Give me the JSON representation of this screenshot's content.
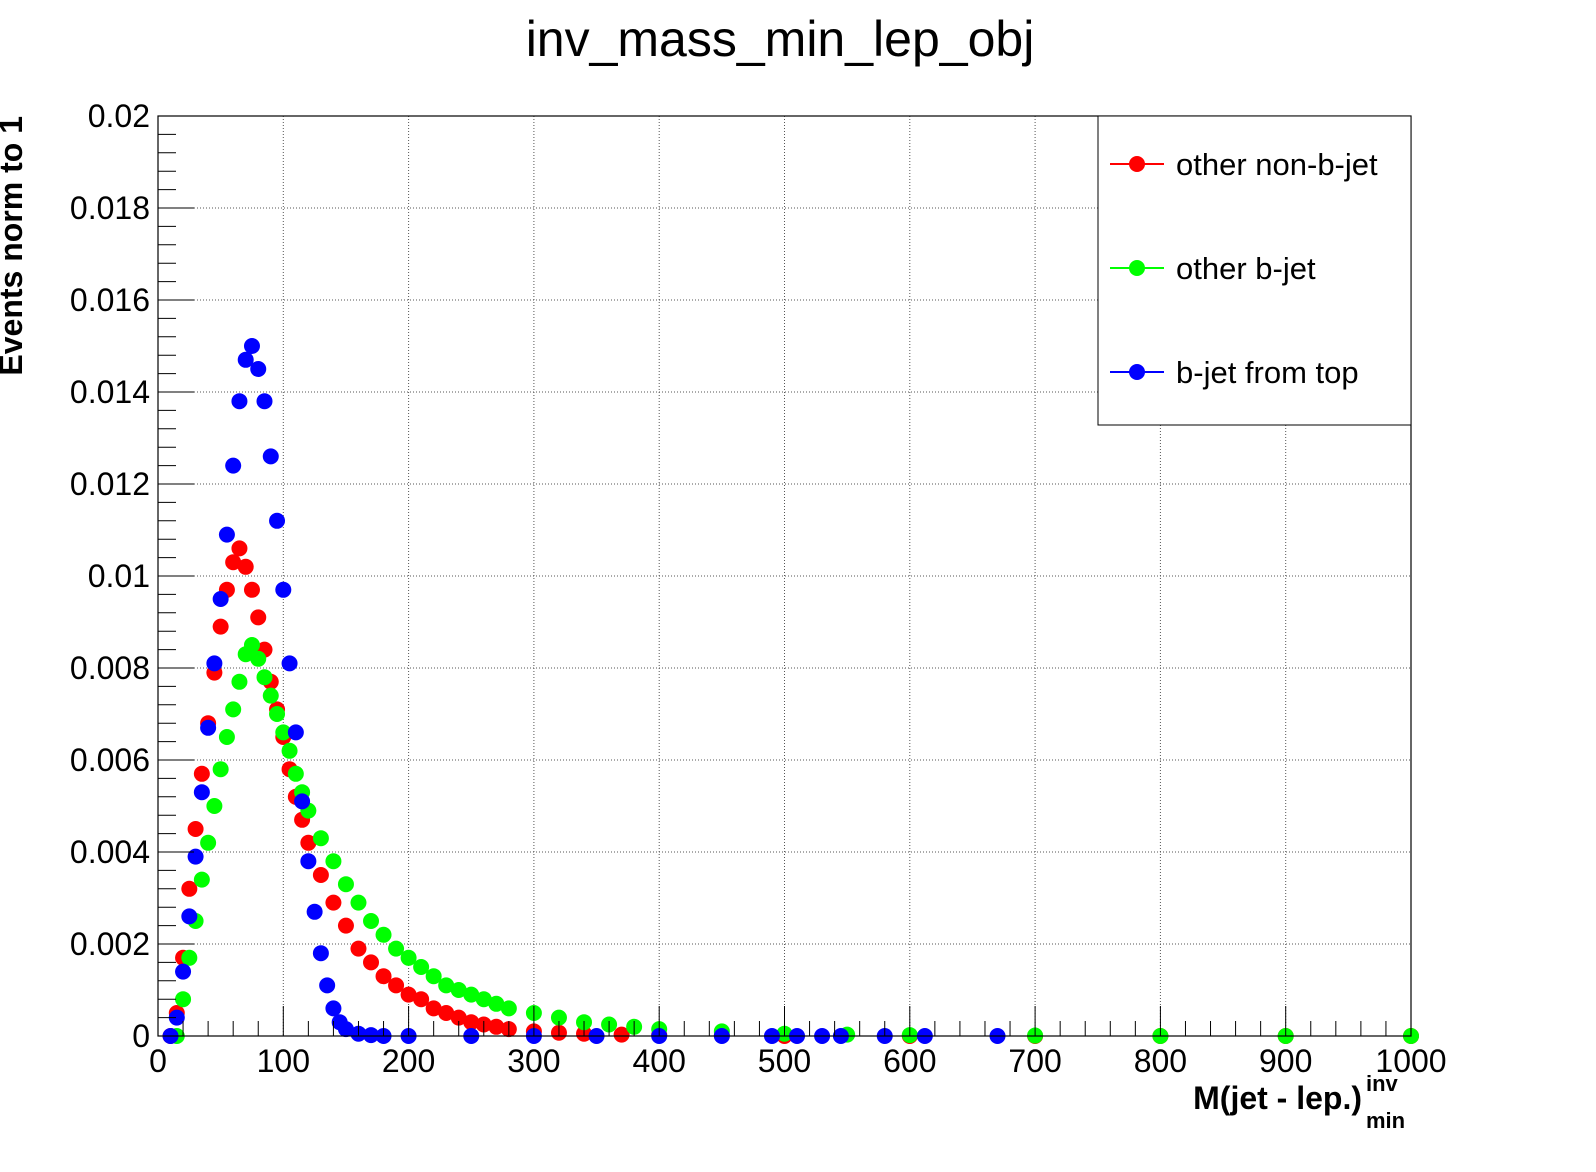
{
  "chart_data": {
    "type": "scatter",
    "title": "inv_mass_min_lep_obj",
    "xlabel": {
      "main": "M(jet - lep.)",
      "superscript": "inv",
      "subscript": "min"
    },
    "ylabel": "Events norm to 1",
    "xlim": [
      0,
      1000
    ],
    "ylim": [
      0,
      0.02
    ],
    "x_ticks": [
      "0",
      "100",
      "200",
      "300",
      "400",
      "500",
      "600",
      "700",
      "800",
      "900",
      "1000"
    ],
    "y_ticks": [
      "0",
      "0.002",
      "0.004",
      "0.006",
      "0.008",
      "0.01",
      "0.012",
      "0.014",
      "0.016",
      "0.018",
      "0.02"
    ],
    "grid": true,
    "legend_position": "top-right",
    "series": [
      {
        "name": "other non-b-jet",
        "color": "#ff0000",
        "points": [
          [
            10,
            0.0
          ],
          [
            15,
            0.0005
          ],
          [
            20,
            0.0017
          ],
          [
            25,
            0.0032
          ],
          [
            30,
            0.0045
          ],
          [
            35,
            0.0057
          ],
          [
            40,
            0.0068
          ],
          [
            45,
            0.0079
          ],
          [
            50,
            0.0089
          ],
          [
            55,
            0.0097
          ],
          [
            60,
            0.0103
          ],
          [
            65,
            0.0106
          ],
          [
            70,
            0.0102
          ],
          [
            75,
            0.0097
          ],
          [
            80,
            0.0091
          ],
          [
            85,
            0.0084
          ],
          [
            90,
            0.0077
          ],
          [
            95,
            0.0071
          ],
          [
            100,
            0.0065
          ],
          [
            105,
            0.0058
          ],
          [
            110,
            0.0052
          ],
          [
            115,
            0.0047
          ],
          [
            120,
            0.0042
          ],
          [
            130,
            0.0035
          ],
          [
            140,
            0.0029
          ],
          [
            150,
            0.0024
          ],
          [
            160,
            0.0019
          ],
          [
            170,
            0.0016
          ],
          [
            180,
            0.0013
          ],
          [
            190,
            0.0011
          ],
          [
            200,
            0.0009
          ],
          [
            210,
            0.0008
          ],
          [
            220,
            0.0006
          ],
          [
            230,
            0.0005
          ],
          [
            240,
            0.0004
          ],
          [
            250,
            0.0003
          ],
          [
            260,
            0.00025
          ],
          [
            270,
            0.0002
          ],
          [
            280,
            0.00015
          ],
          [
            300,
            0.0001
          ],
          [
            320,
            7e-05
          ],
          [
            340,
            5e-05
          ],
          [
            370,
            3e-05
          ],
          [
            400,
            2e-05
          ],
          [
            450,
            1e-05
          ],
          [
            500,
            0.0
          ],
          [
            600,
            0.0
          ],
          [
            700,
            0.0
          ],
          [
            800,
            0.0
          ],
          [
            900,
            0.0
          ],
          [
            1000,
            0.0
          ]
        ]
      },
      {
        "name": "other b-jet",
        "color": "#00ff00",
        "points": [
          [
            15,
            0.0
          ],
          [
            20,
            0.0008
          ],
          [
            25,
            0.0017
          ],
          [
            30,
            0.0025
          ],
          [
            35,
            0.0034
          ],
          [
            40,
            0.0042
          ],
          [
            45,
            0.005
          ],
          [
            50,
            0.0058
          ],
          [
            55,
            0.0065
          ],
          [
            60,
            0.0071
          ],
          [
            65,
            0.0077
          ],
          [
            70,
            0.0083
          ],
          [
            75,
            0.0085
          ],
          [
            80,
            0.0082
          ],
          [
            85,
            0.0078
          ],
          [
            90,
            0.0074
          ],
          [
            95,
            0.007
          ],
          [
            100,
            0.0066
          ],
          [
            105,
            0.0062
          ],
          [
            110,
            0.0057
          ],
          [
            115,
            0.0053
          ],
          [
            120,
            0.0049
          ],
          [
            130,
            0.0043
          ],
          [
            140,
            0.0038
          ],
          [
            150,
            0.0033
          ],
          [
            160,
            0.0029
          ],
          [
            170,
            0.0025
          ],
          [
            180,
            0.0022
          ],
          [
            190,
            0.0019
          ],
          [
            200,
            0.0017
          ],
          [
            210,
            0.0015
          ],
          [
            220,
            0.0013
          ],
          [
            230,
            0.0011
          ],
          [
            240,
            0.001
          ],
          [
            250,
            0.0009
          ],
          [
            260,
            0.0008
          ],
          [
            270,
            0.0007
          ],
          [
            280,
            0.0006
          ],
          [
            300,
            0.0005
          ],
          [
            320,
            0.0004
          ],
          [
            340,
            0.0003
          ],
          [
            360,
            0.00025
          ],
          [
            380,
            0.0002
          ],
          [
            400,
            0.00015
          ],
          [
            450,
            0.0001
          ],
          [
            500,
            5e-05
          ],
          [
            550,
            3e-05
          ],
          [
            600,
            2e-05
          ],
          [
            700,
            1e-05
          ],
          [
            800,
            0.0
          ],
          [
            900,
            0.0
          ],
          [
            1000,
            0.0
          ]
        ]
      },
      {
        "name": "b-jet from top",
        "color": "#0000ff",
        "points": [
          [
            10,
            0.0
          ],
          [
            15,
            0.0004
          ],
          [
            20,
            0.0014
          ],
          [
            25,
            0.0026
          ],
          [
            30,
            0.0039
          ],
          [
            35,
            0.0053
          ],
          [
            40,
            0.0067
          ],
          [
            45,
            0.0081
          ],
          [
            50,
            0.0095
          ],
          [
            55,
            0.0109
          ],
          [
            60,
            0.0124
          ],
          [
            65,
            0.0138
          ],
          [
            70,
            0.0147
          ],
          [
            75,
            0.015
          ],
          [
            80,
            0.0145
          ],
          [
            85,
            0.0138
          ],
          [
            90,
            0.0126
          ],
          [
            95,
            0.0112
          ],
          [
            100,
            0.0097
          ],
          [
            105,
            0.0081
          ],
          [
            110,
            0.0066
          ],
          [
            115,
            0.0051
          ],
          [
            120,
            0.0038
          ],
          [
            125,
            0.0027
          ],
          [
            130,
            0.0018
          ],
          [
            135,
            0.0011
          ],
          [
            140,
            0.0006
          ],
          [
            145,
            0.0003
          ],
          [
            150,
            0.00015
          ],
          [
            160,
            5e-05
          ],
          [
            170,
            2e-05
          ],
          [
            180,
            0.0
          ],
          [
            200,
            0.0
          ],
          [
            250,
            0.0
          ],
          [
            300,
            0.0
          ],
          [
            350,
            0.0
          ],
          [
            400,
            0.0
          ],
          [
            450,
            0.0
          ],
          [
            490,
            0.0
          ],
          [
            510,
            0.0
          ],
          [
            530,
            0.0
          ],
          [
            545,
            0.0
          ],
          [
            580,
            0.0
          ],
          [
            612,
            0.0
          ],
          [
            670,
            0.0
          ]
        ]
      }
    ]
  }
}
